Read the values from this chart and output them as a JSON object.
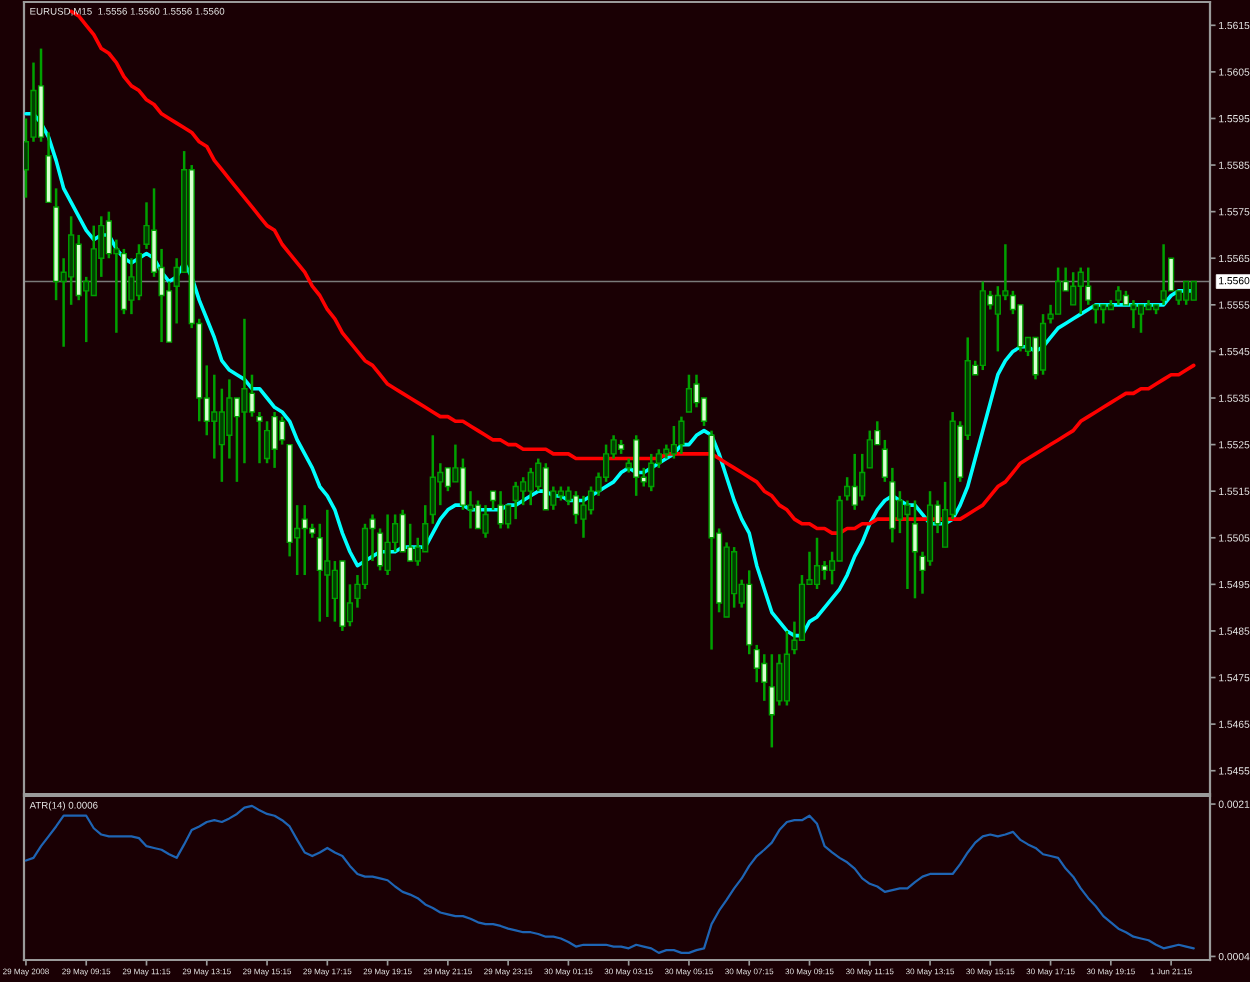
{
  "chart_data": [
    {
      "type": "candlestick",
      "title": "EURUSD,M15  1.5556 1.5560 1.5556 1.5560",
      "categories": [
        null,
        null,
        null,
        null,
        null,
        null,
        null,
        null,
        null,
        null,
        null,
        null,
        null,
        null,
        null,
        null,
        null,
        null,
        null,
        null,
        null,
        null,
        null,
        null,
        null,
        null,
        null,
        null,
        null,
        null,
        null,
        null,
        null,
        null,
        null,
        null,
        null,
        null,
        null,
        null,
        null,
        null,
        null,
        null,
        null,
        null,
        null,
        null,
        null,
        null,
        null,
        null,
        null,
        null,
        null,
        null,
        null,
        null,
        null,
        null,
        null,
        null,
        null,
        null,
        null,
        null,
        null,
        null,
        null,
        null,
        null,
        null,
        null,
        null,
        null,
        null,
        null,
        null,
        null,
        null,
        null,
        null,
        null,
        null,
        null,
        null,
        null,
        null,
        null,
        null,
        null,
        null,
        null,
        null,
        null,
        null,
        null,
        null,
        null,
        null,
        null,
        null,
        null,
        null,
        null,
        null,
        null,
        null,
        null,
        null,
        null,
        null,
        null,
        null,
        null,
        null,
        null,
        null,
        null,
        null,
        null,
        null,
        null,
        null,
        null,
        null,
        null,
        null,
        null,
        null,
        null,
        null,
        null,
        null,
        null,
        null,
        null,
        null,
        null,
        null,
        null,
        null,
        null,
        null,
        null,
        null,
        null,
        null,
        null,
        null,
        null,
        null,
        null,
        null,
        null,
        null
      ],
      "series": [
        {
          "type": "candlestick",
          "color": "#00a000",
          "colors": [
            "#004000",
            "#004000",
            "#d8ffd0",
            "#d8ffd0",
            "#d8ffd0",
            "#004000",
            "#004000",
            "#d8ffd0",
            "#004000",
            "#004000",
            "#004000",
            "#d8ffd0",
            "#004000",
            "#d8ffd0",
            "#004000",
            "#004000",
            "#004000",
            "#d8ffd0",
            "#d8ffd0",
            "#d8ffd0",
            "#004000",
            "#004000",
            "#d8ffd0",
            "#d8ffd0",
            "#d8ffd0",
            "#004000",
            "#004000",
            "#004000",
            "#d8ffd0",
            "#004000",
            "#d8ffd0",
            "#d8ffd0",
            "#004000",
            "#d8ffd0",
            "#d8ffd0",
            "#d8ffd0",
            "#004000",
            "#d8ffd0",
            "#d8ffd0",
            "#d8ffd0",
            "#004000",
            "#004000",
            "#d8ffd0",
            "#004000",
            "#004000",
            "#004000",
            "#d8ffd0",
            "#d8ffd0",
            "#004000",
            "#004000",
            "#d8ffd0",
            "#d8ffd0",
            "#004000",
            "#004000",
            "#004000",
            "#004000",
            "#d8ffd0",
            "#004000",
            "#d8ffd0",
            "#004000",
            "#d8ffd0",
            "#004000",
            "#d8ffd0",
            "#d8ffd0",
            "#004000",
            "#004000",
            "#004000",
            "#004000",
            "#004000",
            "#d8ffd0",
            "#004000",
            "#004000",
            "#004000",
            "#d8ffd0",
            "#004000",
            "#004000",
            "#004000",
            "#004000",
            "#004000",
            "#d8ffd0",
            "#004000",
            "#d8ffd0",
            "#d8ffd0",
            "#004000",
            "#004000",
            "#004000",
            "#004000",
            "#004000",
            "#004000",
            "#d8ffd0",
            "#d8ffd0",
            "#d8ffd0",
            "#d8ffd0",
            "#004000",
            "#004000",
            "#004000",
            "#d8ffd0",
            "#d8ffd0",
            "#d8ffd0",
            "#d8ffd0",
            "#004000",
            "#004000",
            "#004000",
            "#004000",
            "#004000",
            "#004000",
            "#d8ffd0",
            "#004000",
            "#004000",
            "#004000",
            "#d8ffd0",
            "#004000",
            "#004000",
            "#d8ffd0",
            "#d8ffd0",
            "#d8ffd0",
            "#004000",
            "#004000",
            "#d8ffd0",
            "#d8ffd0",
            "#004000",
            "#d8ffd0",
            "#004000",
            "#004000",
            "#d8ffd0",
            "#004000",
            "#d8ffd0",
            "#004000",
            "#d8ffd0",
            "#004000",
            "#004000",
            "#d8ffd0",
            "#d8ffd0",
            "#004000",
            "#d8ffd0",
            "#004000",
            "#004000",
            "#004000",
            "#d8ffd0",
            "#004000",
            "#004000",
            "#d8ffd0",
            "#004000",
            "#004000",
            "#004000",
            "#004000",
            "#d8ffd0",
            "#004000",
            "#004000",
            "#004000",
            "#004000",
            "#004000",
            "#d8ffd0",
            "#004000",
            "#004000",
            "#004000"
          ],
          "ohlc": [
            [
              1.5584,
              1.5595,
              1.5578,
              1.559
            ],
            [
              1.5591,
              1.5607,
              1.559,
              1.5601
            ],
            [
              1.5602,
              1.561,
              1.559,
              1.5591
            ],
            [
              1.5587,
              1.5592,
              1.5577,
              1.5577
            ],
            [
              1.5576,
              1.558,
              1.5556,
              1.556
            ],
            [
              1.556,
              1.5565,
              1.5546,
              1.5562
            ],
            [
              1.5561,
              1.5574,
              1.5555,
              1.557
            ],
            [
              1.5568,
              1.557,
              1.5556,
              1.5557
            ],
            [
              1.5558,
              1.5561,
              1.5547,
              1.556
            ],
            [
              1.5557,
              1.5572,
              1.5557,
              1.5567
            ],
            [
              1.5565,
              1.5574,
              1.5561,
              1.5572
            ],
            [
              1.5573,
              1.5575,
              1.5565,
              1.5566
            ],
            [
              1.5566,
              1.5569,
              1.5549,
              1.5567
            ],
            [
              1.5566,
              1.5567,
              1.5553,
              1.5554
            ],
            [
              1.5556,
              1.5565,
              1.5553,
              1.5561
            ],
            [
              1.5557,
              1.5568,
              1.5556,
              1.5566
            ],
            [
              1.5568,
              1.5577,
              1.5567,
              1.5572
            ],
            [
              1.5571,
              1.558,
              1.5561,
              1.5562
            ],
            [
              1.5563,
              1.5567,
              1.5547,
              1.5557
            ],
            [
              1.5558,
              1.556,
              1.5547,
              1.5547
            ],
            [
              1.5559,
              1.5565,
              1.5551,
              1.5563
            ],
            [
              1.5562,
              1.5588,
              1.5562,
              1.5584
            ],
            [
              1.5584,
              1.5585,
              1.555,
              1.5551
            ],
            [
              1.5551,
              1.5552,
              1.553,
              1.5535
            ],
            [
              1.5535,
              1.5542,
              1.5527,
              1.553
            ],
            [
              1.553,
              1.554,
              1.5522,
              1.5532
            ],
            [
              1.5525,
              1.5537,
              1.5517,
              1.5532
            ],
            [
              1.5527,
              1.5539,
              1.5522,
              1.5535
            ],
            [
              1.5535,
              1.5535,
              1.5517,
              1.5531
            ],
            [
              1.5532,
              1.5552,
              1.5521,
              1.5537
            ],
            [
              1.5536,
              1.554,
              1.5531,
              1.5532
            ],
            [
              1.5531,
              1.5532,
              1.5521,
              1.553
            ],
            [
              1.5522,
              1.553,
              1.5521,
              1.5528
            ],
            [
              1.5531,
              1.5532,
              1.552,
              1.5524
            ],
            [
              1.553,
              1.5531,
              1.5525,
              1.5526
            ],
            [
              1.5525,
              1.5525,
              1.5501,
              1.5504
            ],
            [
              1.5505,
              1.5512,
              1.5497,
              1.5507
            ],
            [
              1.5509,
              1.5512,
              1.5497,
              1.5507
            ],
            [
              1.5507,
              1.5508,
              1.5505,
              1.5506
            ],
            [
              1.5505,
              1.5508,
              1.5487,
              1.5498
            ],
            [
              1.5497,
              1.5511,
              1.5488,
              1.55
            ],
            [
              1.5492,
              1.55,
              1.5487,
              1.5498
            ],
            [
              1.55,
              1.55,
              1.5485,
              1.5486
            ],
            [
              1.5487,
              1.5495,
              1.5486,
              1.5491
            ],
            [
              1.5492,
              1.5497,
              1.549,
              1.5495
            ],
            [
              1.5495,
              1.5508,
              1.5494,
              1.5507
            ],
            [
              1.5509,
              1.551,
              1.55,
              1.5507
            ],
            [
              1.5506,
              1.5507,
              1.5498,
              1.5499
            ],
            [
              1.5498,
              1.551,
              1.5497,
              1.5504
            ],
            [
              1.5504,
              1.551,
              1.5502,
              1.5508
            ],
            [
              1.551,
              1.5511,
              1.5502,
              1.5502
            ],
            [
              1.5503,
              1.5508,
              1.55,
              1.55
            ],
            [
              1.55,
              1.5505,
              1.5499,
              1.5503
            ],
            [
              1.5502,
              1.5512,
              1.5502,
              1.5508
            ],
            [
              1.551,
              1.5527,
              1.5508,
              1.5518
            ],
            [
              1.5517,
              1.5521,
              1.5512,
              1.5519
            ],
            [
              1.552,
              1.552,
              1.5515,
              1.5516
            ],
            [
              1.5517,
              1.5525,
              1.5517,
              1.552
            ],
            [
              1.552,
              1.5522,
              1.5511,
              1.5512
            ],
            [
              1.5511,
              1.5515,
              1.5507,
              1.5512
            ],
            [
              1.5512,
              1.5513,
              1.5507,
              1.5507
            ],
            [
              1.5506,
              1.5512,
              1.5505,
              1.551
            ],
            [
              1.5515,
              1.5515,
              1.5511,
              1.5513
            ],
            [
              1.5512,
              1.5515,
              1.5507,
              1.5508
            ],
            [
              1.5508,
              1.5512,
              1.5507,
              1.5512
            ],
            [
              1.5513,
              1.5517,
              1.5509,
              1.5516
            ],
            [
              1.5515,
              1.5518,
              1.5512,
              1.5517
            ],
            [
              1.5515,
              1.552,
              1.5512,
              1.5519
            ],
            [
              1.5516,
              1.5522,
              1.5515,
              1.5521
            ],
            [
              1.552,
              1.5521,
              1.5511,
              1.5511
            ],
            [
              1.5512,
              1.5516,
              1.5511,
              1.5515
            ],
            [
              1.5514,
              1.5516,
              1.5513,
              1.5515
            ],
            [
              1.5513,
              1.5516,
              1.5512,
              1.5515
            ],
            [
              1.5514,
              1.5515,
              1.5508,
              1.551
            ],
            [
              1.5509,
              1.5514,
              1.5505,
              1.5512
            ],
            [
              1.5511,
              1.5516,
              1.551,
              1.5515
            ],
            [
              1.5515,
              1.5519,
              1.5514,
              1.5518
            ],
            [
              1.5518,
              1.5525,
              1.5517,
              1.5523
            ],
            [
              1.5523,
              1.5527,
              1.5522,
              1.5526
            ],
            [
              1.5525,
              1.5526,
              1.5523,
              1.5524
            ],
            [
              1.552,
              1.5522,
              1.5519,
              1.5521
            ],
            [
              1.5526,
              1.5527,
              1.5514,
              1.5518
            ],
            [
              1.5518,
              1.552,
              1.5516,
              1.5517
            ],
            [
              1.5516,
              1.5523,
              1.5515,
              1.5521
            ],
            [
              1.5521,
              1.5524,
              1.552,
              1.5523
            ],
            [
              1.5523,
              1.5525,
              1.5522,
              1.5524
            ],
            [
              1.5523,
              1.5529,
              1.5522,
              1.5525
            ],
            [
              1.5525,
              1.5531,
              1.5523,
              1.553
            ],
            [
              1.5532,
              1.554,
              1.5532,
              1.5537
            ],
            [
              1.5538,
              1.554,
              1.5533,
              1.5534
            ],
            [
              1.5535,
              1.5535,
              1.5529,
              1.553
            ],
            [
              1.5527,
              1.5528,
              1.5481,
              1.5505
            ],
            [
              1.5506,
              1.5507,
              1.5489,
              1.5491
            ],
            [
              1.5488,
              1.5504,
              1.5488,
              1.5503
            ],
            [
              1.5493,
              1.5503,
              1.549,
              1.5502
            ],
            [
              1.5491,
              1.5496,
              1.549,
              1.5495
            ],
            [
              1.5495,
              1.5498,
              1.548,
              1.5482
            ],
            [
              1.5481,
              1.5482,
              1.5474,
              1.5477
            ],
            [
              1.5478,
              1.548,
              1.547,
              1.5474
            ],
            [
              1.5473,
              1.548,
              1.546,
              1.5467
            ],
            [
              1.547,
              1.548,
              1.5469,
              1.5478
            ],
            [
              1.547,
              1.5485,
              1.5469,
              1.548
            ],
            [
              1.5481,
              1.5487,
              1.548,
              1.5483
            ],
            [
              1.5483,
              1.5497,
              1.5483,
              1.5495
            ],
            [
              1.5495,
              1.5502,
              1.5495,
              1.5496
            ],
            [
              1.5495,
              1.5505,
              1.5494,
              1.5499
            ],
            [
              1.5499,
              1.55,
              1.5496,
              1.5498
            ],
            [
              1.5498,
              1.5502,
              1.5495,
              1.55
            ],
            [
              1.55,
              1.5514,
              1.55,
              1.5513
            ],
            [
              1.5514,
              1.5518,
              1.5513,
              1.5516
            ],
            [
              1.5516,
              1.5523,
              1.5511,
              1.5512
            ],
            [
              1.5514,
              1.5523,
              1.5513,
              1.5519
            ],
            [
              1.552,
              1.5528,
              1.552,
              1.5526
            ],
            [
              1.5528,
              1.553,
              1.5525,
              1.5525
            ],
            [
              1.5524,
              1.5526,
              1.5517,
              1.5518
            ],
            [
              1.5517,
              1.552,
              1.5504,
              1.5507
            ],
            [
              1.5509,
              1.5515,
              1.5506,
              1.5513
            ],
            [
              1.551,
              1.5513,
              1.5494,
              1.5512
            ],
            [
              1.5508,
              1.5513,
              1.5492,
              1.5502
            ],
            [
              1.5501,
              1.5502,
              1.5493,
              1.5498
            ],
            [
              1.55,
              1.5515,
              1.5499,
              1.5512
            ],
            [
              1.5512,
              1.5513,
              1.5506,
              1.5508
            ],
            [
              1.5503,
              1.5517,
              1.5503,
              1.5511
            ],
            [
              1.551,
              1.5532,
              1.5509,
              1.553
            ],
            [
              1.5529,
              1.553,
              1.5517,
              1.5518
            ],
            [
              1.5527,
              1.5548,
              1.5526,
              1.5543
            ],
            [
              1.5542,
              1.5543,
              1.554,
              1.554
            ],
            [
              1.5542,
              1.556,
              1.5541,
              1.5558
            ],
            [
              1.5557,
              1.5558,
              1.5554,
              1.5555
            ],
            [
              1.5553,
              1.5559,
              1.5545,
              1.5557
            ],
            [
              1.5557,
              1.5568,
              1.5556,
              1.5558
            ],
            [
              1.5557,
              1.5558,
              1.5553,
              1.5554
            ],
            [
              1.5555,
              1.5555,
              1.5545,
              1.5546
            ],
            [
              1.5545,
              1.5548,
              1.5544,
              1.5548
            ],
            [
              1.5548,
              1.5548,
              1.5539,
              1.554
            ],
            [
              1.5541,
              1.5553,
              1.554,
              1.5551
            ],
            [
              1.5552,
              1.5555,
              1.5551,
              1.5553
            ],
            [
              1.5553,
              1.5563,
              1.5553,
              1.556
            ],
            [
              1.556,
              1.5563,
              1.5558,
              1.5558
            ],
            [
              1.5555,
              1.5562,
              1.5555,
              1.5559
            ],
            [
              1.5559,
              1.5563,
              1.5553,
              1.5562
            ],
            [
              1.5559,
              1.5563,
              1.5555,
              1.5556
            ],
            [
              1.5554,
              1.5555,
              1.5551,
              1.5555
            ],
            [
              1.5554,
              1.5555,
              1.5551,
              1.5555
            ],
            [
              1.5554,
              1.5556,
              1.5554,
              1.5555
            ],
            [
              1.5556,
              1.5559,
              1.5555,
              1.5558
            ],
            [
              1.5557,
              1.5558,
              1.5555,
              1.5555
            ],
            [
              1.5554,
              1.5556,
              1.555,
              1.5555
            ],
            [
              1.5553,
              1.5555,
              1.5549,
              1.5555
            ],
            [
              1.5554,
              1.5556,
              1.5554,
              1.5555
            ],
            [
              1.5554,
              1.5555,
              1.5553,
              1.5555
            ],
            [
              1.5556,
              1.5568,
              1.5555,
              1.5558
            ],
            [
              1.5565,
              1.5565,
              1.5558,
              1.5558
            ],
            [
              1.5556,
              1.5558,
              1.5555,
              1.5558
            ],
            [
              1.5556,
              1.556,
              1.5555,
              1.556
            ],
            [
              1.5556,
              1.556,
              1.5556,
              1.556
            ]
          ]
        },
        {
          "type": "line",
          "color": "#00ffff",
          "values": [
            1.5596,
            1.5596,
            1.5594,
            1.5591,
            1.5586,
            1.558,
            1.5577,
            1.5574,
            1.5571,
            1.5569,
            1.557,
            1.557,
            1.5567,
            1.5565,
            1.5564,
            1.5565,
            1.5566,
            1.5565,
            1.5562,
            1.556,
            1.5561,
            1.5564,
            1.5561,
            1.5556,
            1.5552,
            1.5548,
            1.5543,
            1.5541,
            1.554,
            1.5539,
            1.5537,
            1.5537,
            1.5535,
            1.5533,
            1.5532,
            1.553,
            1.5526,
            1.5523,
            1.552,
            1.5516,
            1.5514,
            1.5511,
            1.5506,
            1.5502,
            1.5499,
            1.55,
            1.5501,
            1.5502,
            1.5502,
            1.5502,
            1.5503,
            1.5503,
            1.5503,
            1.5503,
            1.5506,
            1.5509,
            1.5511,
            1.5512,
            1.5512,
            1.5511,
            1.5511,
            1.5511,
            1.5511,
            1.5511,
            1.5512,
            1.5512,
            1.5513,
            1.5514,
            1.5515,
            1.5515,
            1.5514,
            1.5514,
            1.5513,
            1.5513,
            1.5513,
            1.5514,
            1.5515,
            1.5516,
            1.5517,
            1.5519,
            1.552,
            1.5519,
            1.5519,
            1.552,
            1.5521,
            1.5522,
            1.5523,
            1.5525,
            1.5525,
            1.5527,
            1.5528,
            1.5527,
            1.5523,
            1.5518,
            1.5513,
            1.5509,
            1.5506,
            1.5499,
            1.5494,
            1.5489,
            1.5487,
            1.5485,
            1.5484,
            1.5484,
            1.5487,
            1.5488,
            1.549,
            1.5492,
            1.5494,
            1.5497,
            1.5501,
            1.5504,
            1.5508,
            1.5511,
            1.5513,
            1.5514,
            1.5513,
            1.5512,
            1.5512,
            1.551,
            1.5508,
            1.5508,
            1.5508,
            1.5509,
            1.5512,
            1.5516,
            1.5522,
            1.5528,
            1.5534,
            1.554,
            1.5543,
            1.5545,
            1.5546,
            1.5546,
            1.5545,
            1.5546,
            1.5548,
            1.555,
            1.5551,
            1.5552,
            1.5553,
            1.5554,
            1.5555,
            1.5555,
            1.5555,
            1.5555,
            1.5555,
            1.5555,
            1.5555,
            1.5555,
            1.5555,
            1.5555,
            1.5557,
            1.5558,
            1.5558,
            1.5558
          ]
        },
        {
          "type": "line",
          "color": "#ff0000",
          "values": [
            null,
            null,
            null,
            null,
            null,
            null,
            1.5618,
            1.5617,
            1.5615,
            1.5613,
            1.561,
            1.5609,
            1.5607,
            1.5604,
            1.5602,
            1.5601,
            1.5599,
            1.5598,
            1.5596,
            1.5595,
            1.5594,
            1.5593,
            1.5592,
            1.559,
            1.5589,
            1.5586,
            1.5584,
            1.5582,
            1.558,
            1.5578,
            1.5576,
            1.5574,
            1.5572,
            1.5571,
            1.5568,
            1.5566,
            1.5564,
            1.5562,
            1.5559,
            1.5557,
            1.5554,
            1.5552,
            1.5549,
            1.5547,
            1.5545,
            1.5543,
            1.5542,
            1.554,
            1.5538,
            1.5537,
            1.5536,
            1.5535,
            1.5534,
            1.5533,
            1.5532,
            1.5531,
            1.5531,
            1.553,
            1.553,
            1.5529,
            1.5528,
            1.5527,
            1.5526,
            1.5526,
            1.5525,
            1.5525,
            1.5524,
            1.5524,
            1.5524,
            1.5524,
            1.5523,
            1.5523,
            1.5523,
            1.5522,
            1.5522,
            1.5522,
            1.5522,
            1.5522,
            1.5522,
            1.5522,
            1.5522,
            1.5522,
            1.5522,
            1.5522,
            1.5522,
            1.5523,
            1.5523,
            1.5523,
            1.5523,
            1.5523,
            1.5523,
            1.5523,
            1.5522,
            1.5521,
            1.552,
            1.5519,
            1.5518,
            1.5517,
            1.5515,
            1.5514,
            1.5512,
            1.5511,
            1.5509,
            1.5508,
            1.5508,
            1.5507,
            1.5507,
            1.5506,
            1.5506,
            1.5507,
            1.5507,
            1.5508,
            1.5508,
            1.5509,
            1.5509,
            1.5509,
            1.5509,
            1.5509,
            1.5509,
            1.5509,
            1.5509,
            1.5509,
            1.5509,
            1.5509,
            1.5509,
            1.551,
            1.5511,
            1.5512,
            1.5514,
            1.5516,
            1.5517,
            1.5519,
            1.5521,
            1.5522,
            1.5523,
            1.5524,
            1.5525,
            1.5526,
            1.5527,
            1.5528,
            1.553,
            1.5531,
            1.5532,
            1.5533,
            1.5534,
            1.5535,
            1.5536,
            1.5536,
            1.5537,
            1.5537,
            1.5538,
            1.5539,
            1.554,
            1.554,
            1.5541,
            1.5542
          ]
        }
      ],
      "ylim": [
        1.545,
        1.562
      ],
      "yticks": [
        1.5455,
        1.5465,
        1.5475,
        1.5485,
        1.5495,
        1.5505,
        1.5515,
        1.5525,
        1.5535,
        1.5545,
        1.5555,
        1.5565,
        1.5575,
        1.5585,
        1.5595,
        1.5605,
        1.5615
      ],
      "ref_lines": [
        {
          "axis": "y",
          "value": 1.556,
          "label": "1.5560",
          "color": "#7a7a7a"
        }
      ],
      "tick_labels": "y"
    },
    {
      "type": "line",
      "title": "ATR(14) 0.0006",
      "categories": [
        "29 May 2008",
        null,
        null,
        null,
        null,
        null,
        null,
        null,
        "29 May 09:15",
        null,
        null,
        null,
        null,
        null,
        null,
        null,
        "29 May 11:15",
        null,
        null,
        null,
        null,
        null,
        null,
        null,
        "29 May 13:15",
        null,
        null,
        null,
        null,
        null,
        null,
        null,
        "29 May 15:15",
        null,
        null,
        null,
        null,
        null,
        null,
        null,
        "29 May 17:15",
        null,
        null,
        null,
        null,
        null,
        null,
        null,
        "29 May 19:15",
        null,
        null,
        null,
        null,
        null,
        null,
        null,
        "29 May 21:15",
        null,
        null,
        null,
        null,
        null,
        null,
        null,
        "29 May 23:15",
        null,
        null,
        null,
        null,
        null,
        null,
        null,
        "30 May 01:15",
        null,
        null,
        null,
        null,
        null,
        null,
        null,
        "30 May 03:15",
        null,
        null,
        null,
        null,
        null,
        null,
        null,
        "30 May 05:15",
        null,
        null,
        null,
        null,
        null,
        null,
        null,
        "30 May 07:15",
        null,
        null,
        null,
        null,
        null,
        null,
        null,
        "30 May 09:15",
        null,
        null,
        null,
        null,
        null,
        null,
        null,
        "30 May 11:15",
        null,
        null,
        null,
        null,
        null,
        null,
        null,
        "30 May 13:15",
        null,
        null,
        null,
        null,
        null,
        null,
        null,
        "30 May 15:15",
        null,
        null,
        null,
        null,
        null,
        null,
        null,
        "30 May 17:15",
        null,
        null,
        null,
        null,
        null,
        null,
        null,
        "30 May 19:15",
        null,
        null,
        null,
        null,
        null,
        null,
        null,
        "1 Jun 21:15",
        null,
        null,
        null
      ],
      "series": [
        {
          "color": "#1e64b4",
          "values": [
            0.00147,
            0.0015,
            0.00163,
            0.00174,
            0.00185,
            0.00197,
            0.00197,
            0.00197,
            0.00197,
            0.00183,
            0.00176,
            0.00174,
            0.00174,
            0.00174,
            0.00174,
            0.00172,
            0.00163,
            0.00161,
            0.00159,
            0.00154,
            0.0015,
            0.00165,
            0.00181,
            0.00185,
            0.0019,
            0.00192,
            0.0019,
            0.00194,
            0.00199,
            0.00206,
            0.00208,
            0.00203,
            0.00199,
            0.00197,
            0.00192,
            0.00185,
            0.0017,
            0.00156,
            0.00152,
            0.00156,
            0.00161,
            0.00156,
            0.00152,
            0.00141,
            0.00132,
            0.00129,
            0.00129,
            0.00127,
            0.00125,
            0.00118,
            0.00112,
            0.00109,
            0.00105,
            0.00098,
            0.00094,
            0.00089,
            0.00087,
            0.00085,
            0.00085,
            0.00082,
            0.00078,
            0.00076,
            0.00076,
            0.00074,
            0.00071,
            0.00069,
            0.00067,
            0.00067,
            0.00065,
            0.00062,
            0.00062,
            0.0006,
            0.00056,
            0.00051,
            0.00053,
            0.00053,
            0.00053,
            0.00053,
            0.00051,
            0.00051,
            0.00049,
            0.00053,
            0.00051,
            0.00049,
            0.00044,
            0.00047,
            0.00047,
            0.00044,
            0.00044,
            0.00047,
            0.00049,
            0.00076,
            0.00091,
            0.00103,
            0.00116,
            0.00127,
            0.00141,
            0.00152,
            0.00159,
            0.00167,
            0.00181,
            0.0019,
            0.00192,
            0.00192,
            0.00197,
            0.00188,
            0.00163,
            0.00156,
            0.0015,
            0.00145,
            0.00138,
            0.00127,
            0.00121,
            0.00118,
            0.00112,
            0.00114,
            0.00116,
            0.00116,
            0.00123,
            0.00129,
            0.00132,
            0.00132,
            0.00132,
            0.00132,
            0.00143,
            0.00156,
            0.00167,
            0.00174,
            0.00176,
            0.00174,
            0.00176,
            0.00179,
            0.0017,
            0.00165,
            0.00161,
            0.00154,
            0.00152,
            0.0015,
            0.00138,
            0.00129,
            0.00116,
            0.00105,
            0.00096,
            0.00085,
            0.00078,
            0.00071,
            0.00067,
            0.00062,
            0.0006,
            0.00058,
            0.00053,
            0.00049,
            0.00051,
            0.00053,
            0.00051,
            0.00049
          ]
        }
      ],
      "ylim": [
        0.00036,
        0.00219
      ],
      "yticks": [
        0.0021,
        0.0004
      ]
    }
  ]
}
